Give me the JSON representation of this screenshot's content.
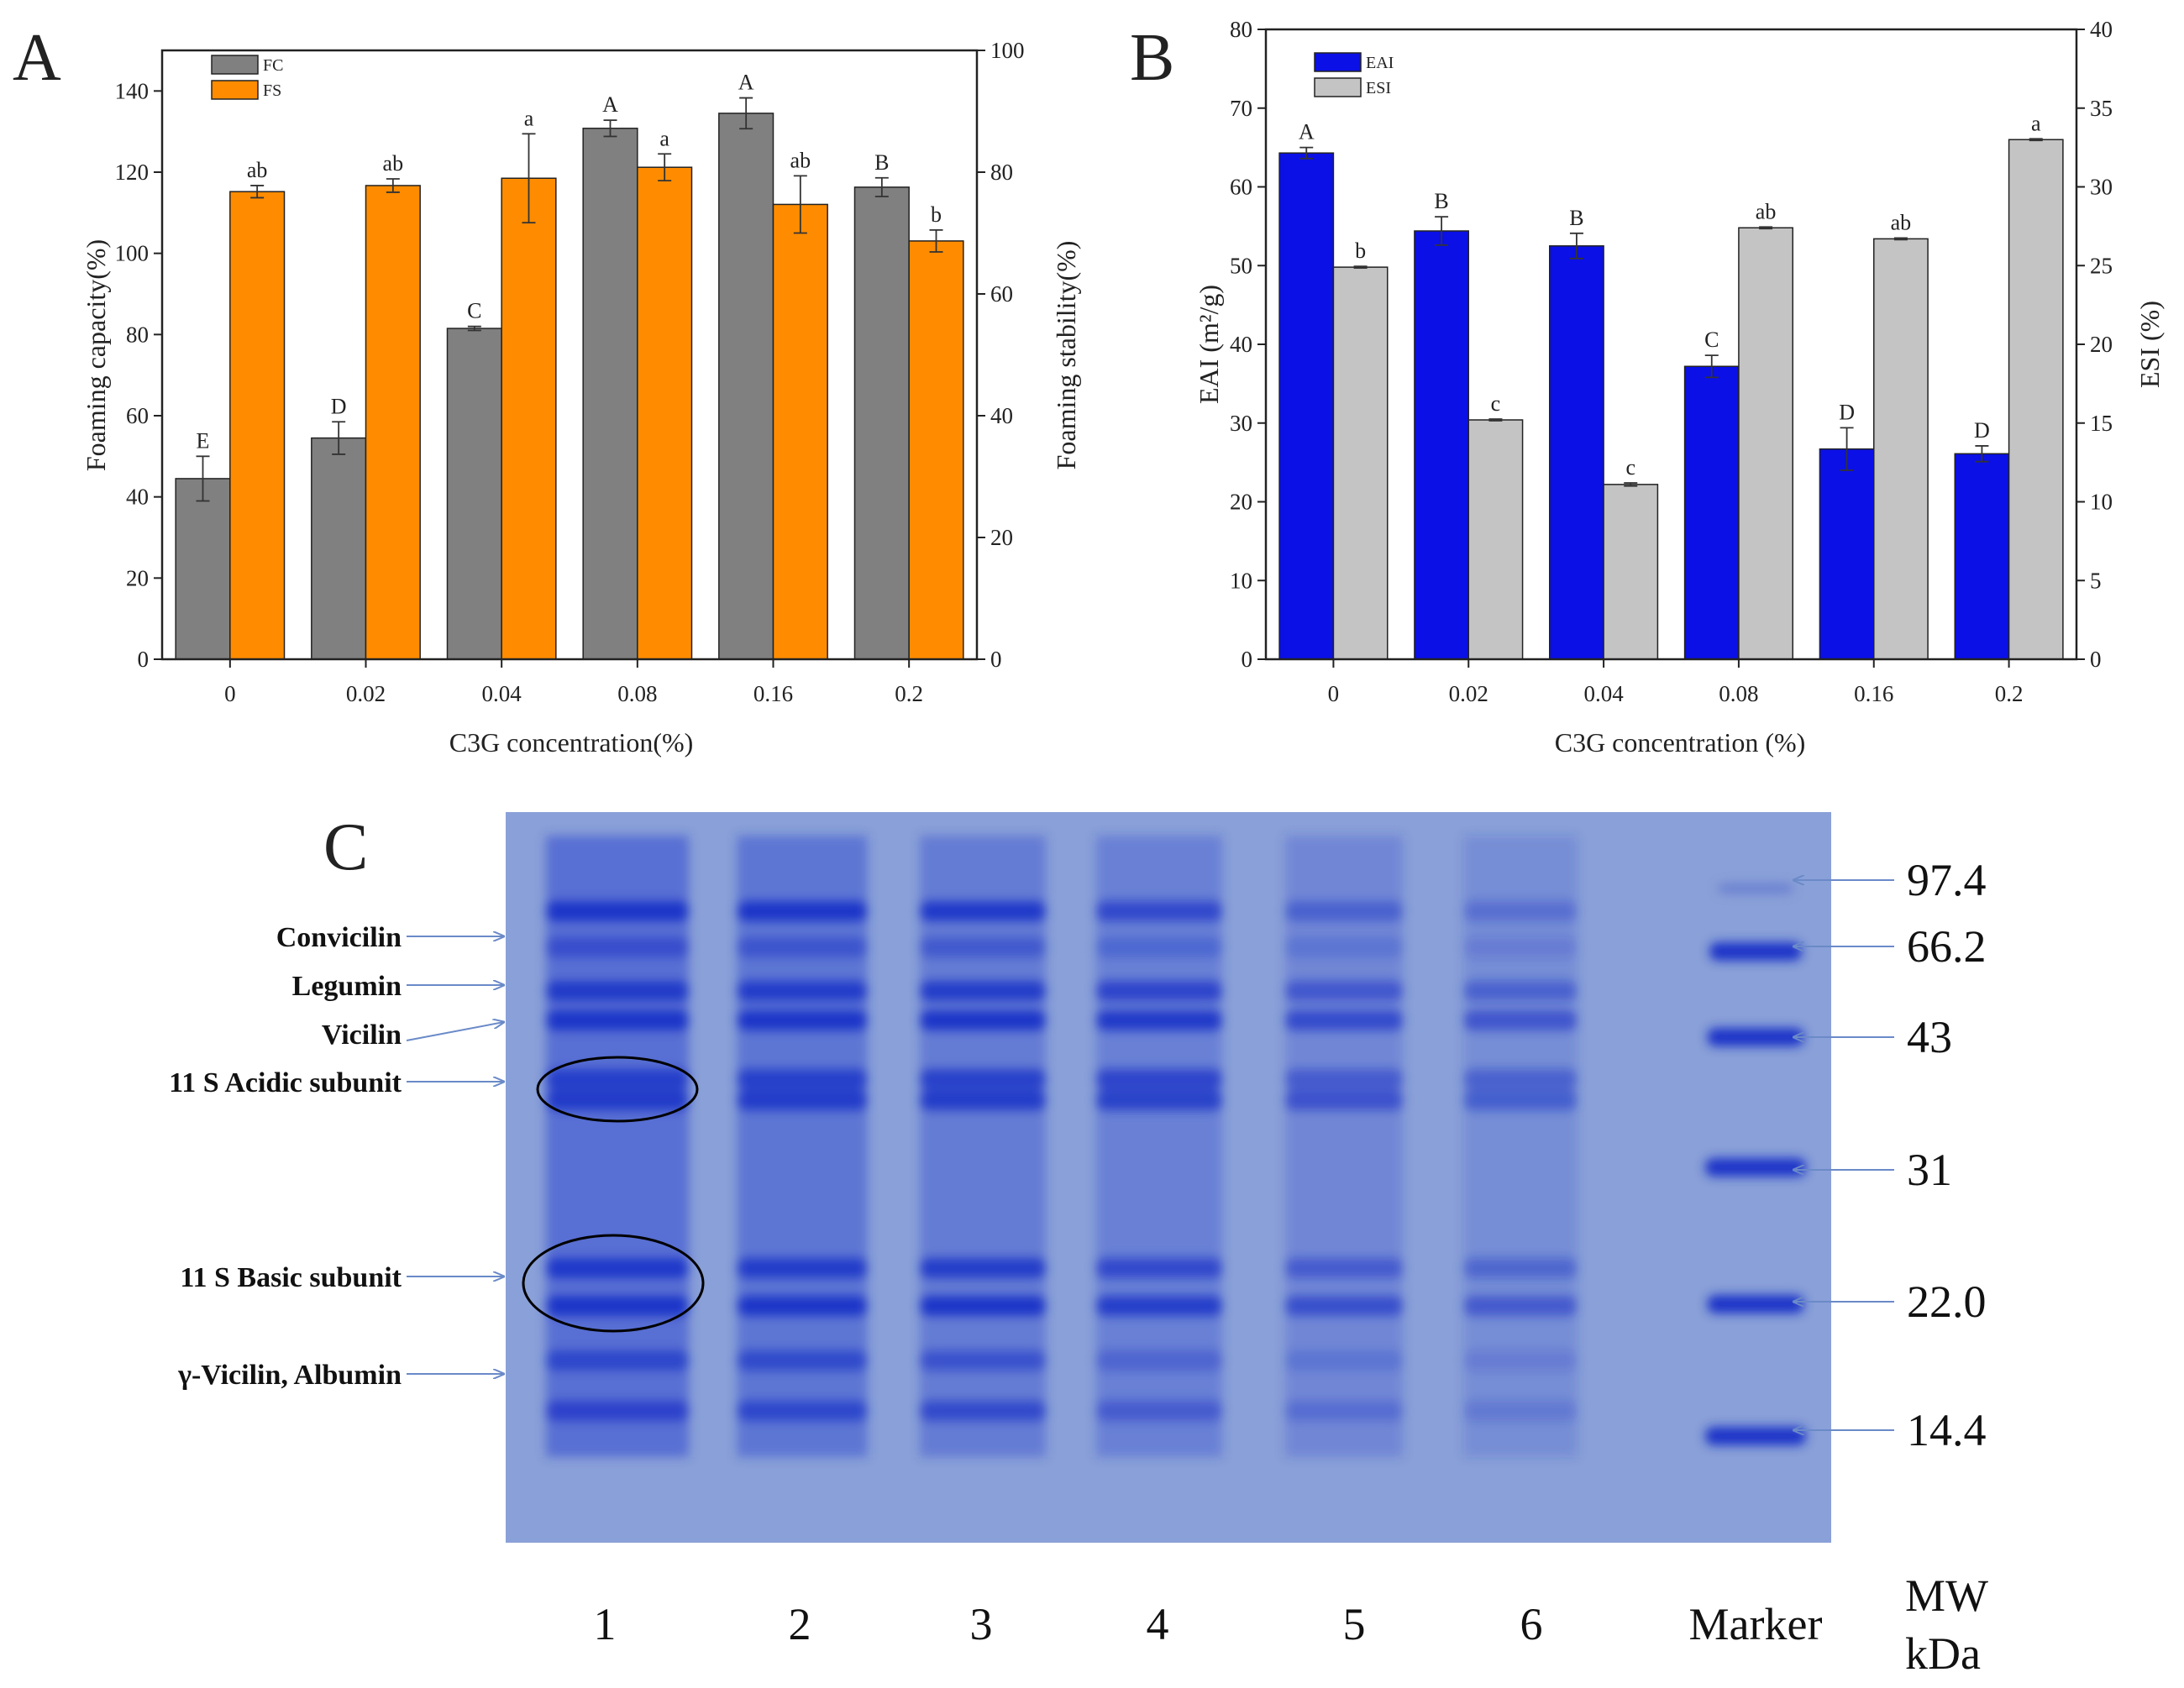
{
  "chart_data": [
    {
      "panel_letter": "A",
      "type": "bar",
      "x_label": "C3G concentration(%)",
      "categories": [
        "0",
        "0.02",
        "0.04",
        "0.08",
        "0.16",
        "0.2"
      ],
      "y_left_label": "Foaming capacity(%)",
      "y_left_range": [
        0,
        150
      ],
      "y_left_ticks": [
        "0",
        "20",
        "40",
        "60",
        "80",
        "100",
        "120",
        "140"
      ],
      "y_right_label": "Foaming stability(%)",
      "y_right_range": [
        0,
        100
      ],
      "y_right_ticks": [
        "0",
        "20",
        "40",
        "60",
        "80",
        "100"
      ],
      "legend_position": "top-left",
      "series": [
        {
          "name": "FC",
          "axis": "left",
          "color": "#808080",
          "values": [
            44.5,
            54.5,
            81.5,
            130.8,
            134.5,
            116.3
          ],
          "errors": [
            5.5,
            4.0,
            0.5,
            2.0,
            3.8,
            2.3
          ],
          "letters": [
            "E",
            "D",
            "C",
            "A",
            "A",
            "B"
          ]
        },
        {
          "name": "FS",
          "axis": "right",
          "color": "#FF8C00",
          "values": [
            76.8,
            77.8,
            79.0,
            80.8,
            74.7,
            68.7
          ],
          "errors": [
            1.0,
            1.1,
            7.3,
            2.2,
            4.7,
            1.8
          ],
          "letters": [
            "ab",
            "ab",
            "a",
            "a",
            "ab",
            "b"
          ]
        }
      ]
    },
    {
      "panel_letter": "B",
      "type": "bar",
      "x_label": "C3G concentration (%)",
      "categories": [
        "0",
        "0.02",
        "0.04",
        "0.08",
        "0.16",
        "0.2"
      ],
      "y_left_label": "EAI (m²/g)",
      "y_left_range": [
        0,
        80
      ],
      "y_left_ticks": [
        "0",
        "10",
        "20",
        "30",
        "40",
        "50",
        "60",
        "70",
        "80"
      ],
      "y_right_label": "ESI (%)",
      "y_right_range": [
        0,
        40
      ],
      "y_right_ticks": [
        "0",
        "5",
        "10",
        "15",
        "20",
        "25",
        "30",
        "35",
        "40"
      ],
      "legend_position": "top-left",
      "series": [
        {
          "name": "EAI",
          "axis": "left",
          "color": "#0A10E6",
          "values": [
            64.3,
            54.4,
            52.5,
            37.2,
            26.7,
            26.1
          ],
          "errors": [
            0.7,
            1.8,
            1.6,
            1.4,
            2.7,
            1.0
          ],
          "letters": [
            "A",
            "B",
            "B",
            "C",
            "D",
            "D"
          ]
        },
        {
          "name": "ESI",
          "axis": "right",
          "color": "#C4C4C4",
          "values": [
            24.9,
            15.2,
            11.1,
            27.4,
            26.7,
            33.0
          ],
          "errors": [
            0.05,
            0.05,
            0.1,
            0.05,
            0.05,
            0.05
          ],
          "letters": [
            "b",
            "c",
            "c",
            "ab",
            "ab",
            "a"
          ]
        }
      ]
    }
  ],
  "gel": {
    "panel_letter": "C",
    "band_labels": [
      "Convicilin",
      "Legumin",
      "Vicilin",
      "11 S Acidic subunit",
      "11 S Basic subunit",
      "γ-Vicilin, Albumin"
    ],
    "lanes": [
      "1",
      "2",
      "3",
      "4",
      "5",
      "6",
      "Marker"
    ],
    "marker_weights": [
      "97.4",
      "66.2",
      "43",
      "31",
      "22.0",
      "14.4"
    ],
    "mw_label_line1": "MW",
    "mw_label_line2": "kDa",
    "colors": {
      "gel_background": "#8AA0D8",
      "band": "#1F36C8",
      "arrow": "#6A8AC8"
    }
  }
}
